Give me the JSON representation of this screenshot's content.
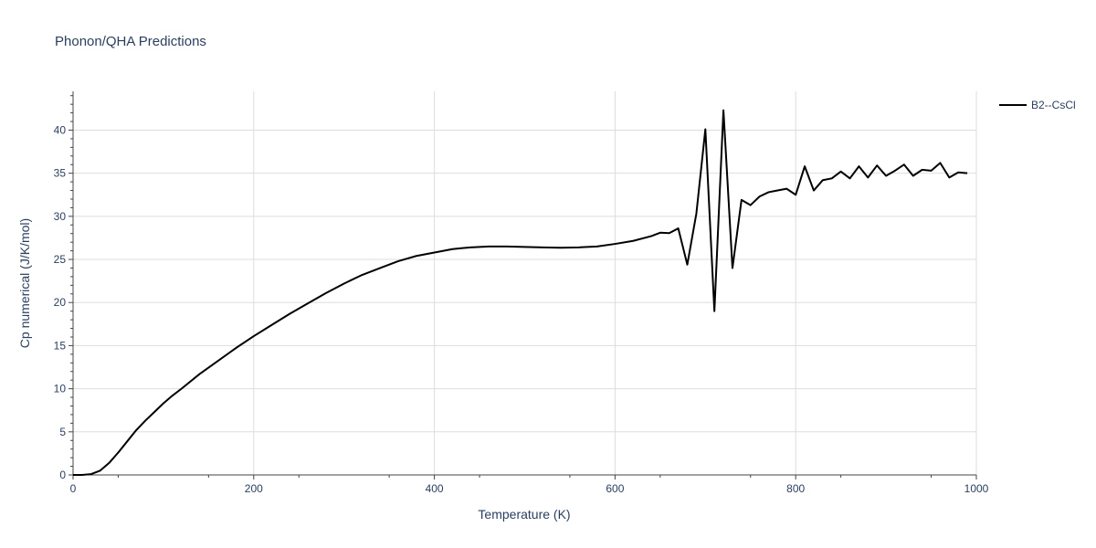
{
  "chart_data": {
    "type": "line",
    "title": "Phonon/QHA Predictions",
    "xlabel": "Temperature (K)",
    "ylabel": "Cp numerical (J/K/mol)",
    "xlim": [
      0,
      1000
    ],
    "ylim": [
      0,
      44.5
    ],
    "x_ticks": [
      "0",
      "200",
      "400",
      "600",
      "800",
      "1000"
    ],
    "y_ticks": [
      "0",
      "5",
      "10",
      "15",
      "20",
      "25",
      "30",
      "35",
      "40"
    ],
    "grid": true,
    "legend_position": "top-right",
    "series": [
      {
        "name": "B2--CsCl",
        "color": "#000000",
        "x": [
          0,
          10,
          20,
          30,
          40,
          50,
          60,
          70,
          80,
          90,
          100,
          110,
          120,
          140,
          160,
          180,
          200,
          220,
          240,
          260,
          280,
          300,
          320,
          340,
          360,
          380,
          400,
          420,
          440,
          460,
          480,
          500,
          520,
          540,
          560,
          580,
          600,
          620,
          640,
          650,
          660,
          670,
          680,
          690,
          700,
          710,
          720,
          730,
          740,
          750,
          760,
          770,
          780,
          790,
          800,
          810,
          820,
          830,
          840,
          850,
          860,
          870,
          880,
          890,
          900,
          910,
          920,
          930,
          940,
          950,
          960,
          970,
          980,
          990
        ],
        "y": [
          0,
          0,
          0.1,
          0.5,
          1.4,
          2.6,
          3.9,
          5.2,
          6.3,
          7.3,
          8.3,
          9.2,
          10.0,
          11.7,
          13.2,
          14.7,
          16.1,
          17.4,
          18.7,
          19.9,
          21.1,
          22.2,
          23.2,
          24.0,
          24.8,
          25.4,
          25.8,
          26.2,
          26.4,
          26.5,
          26.5,
          26.45,
          26.4,
          26.35,
          26.4,
          26.5,
          26.8,
          27.15,
          27.7,
          28.1,
          28.05,
          28.6,
          24.4,
          30.3,
          40.1,
          19.0,
          42.3,
          24.0,
          31.9,
          31.3,
          32.3,
          32.8,
          33.0,
          33.2,
          32.5,
          35.8,
          33.0,
          34.2,
          34.4,
          35.2,
          34.4,
          35.8,
          34.5,
          35.9,
          34.7,
          35.3,
          36.0,
          34.7,
          35.4,
          35.3,
          36.2,
          34.5,
          35.1,
          35.0
        ]
      }
    ]
  }
}
